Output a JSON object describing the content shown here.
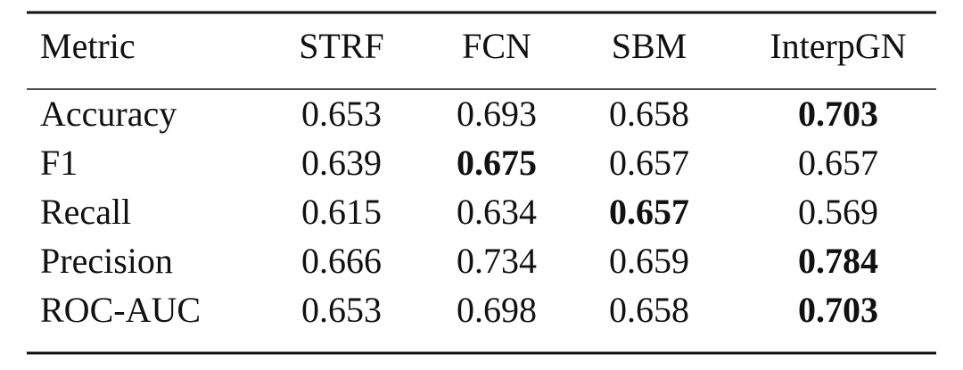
{
  "table": {
    "header": [
      "Metric",
      "STRF",
      "FCN",
      "SBM",
      "InterpGN"
    ],
    "rows": [
      [
        "Accuracy",
        "0.653",
        "0.693",
        "0.658",
        "0.703"
      ],
      [
        "F1",
        "0.639",
        "0.675",
        "0.657",
        "0.657"
      ],
      [
        "Recall",
        "0.615",
        "0.634",
        "0.657",
        "0.569"
      ],
      [
        "Precision",
        "0.666",
        "0.734",
        "0.659",
        "0.784"
      ],
      [
        "ROC-AUC",
        "0.653",
        "0.698",
        "0.658",
        "0.703"
      ]
    ],
    "bold": [
      [
        0,
        4
      ],
      [
        1,
        2
      ],
      [
        2,
        3
      ],
      [
        3,
        4
      ],
      [
        4,
        4
      ]
    ]
  }
}
